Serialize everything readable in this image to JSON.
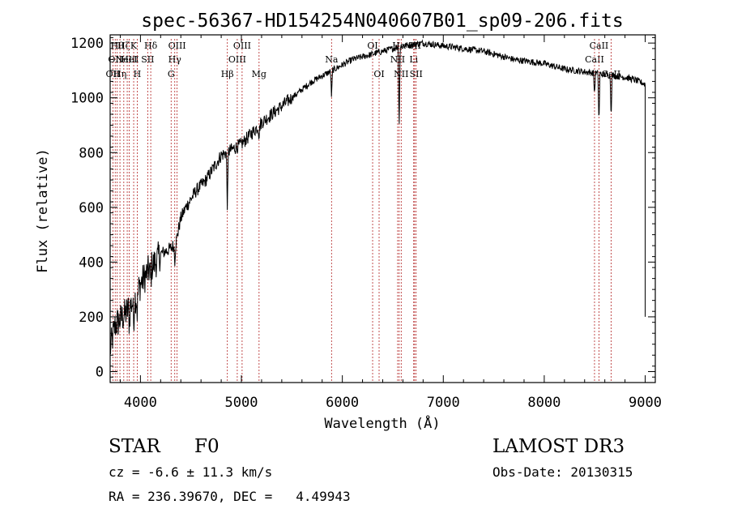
{
  "colors": {
    "spectrum": "#000000",
    "line_marker": "#b22222",
    "axes": "#000000"
  },
  "chart_data": {
    "type": "line",
    "title": "spec-56367-HD154254N040607B01_sp09-206.fits",
    "xlabel": "Wavelength (Å)",
    "ylabel": "Flux (relative)",
    "xlim": [
      3700,
      9100
    ],
    "ylim": [
      -40,
      1230
    ],
    "xticks": [
      4000,
      5000,
      6000,
      7000,
      8000,
      9000
    ],
    "yticks": [
      0,
      200,
      400,
      600,
      800,
      1000,
      1200
    ],
    "grid": false,
    "series": [
      {
        "x": [
          3700,
          3750,
          3800,
          3850,
          3900,
          3950,
          4000,
          4050,
          4100,
          4150,
          4200,
          4250,
          4300,
          4350,
          4400,
          4450,
          4500,
          4550,
          4600,
          4650,
          4700,
          4750,
          4800,
          4850,
          4900,
          4950,
          5000,
          5050,
          5100,
          5150,
          5200,
          5300,
          5400,
          5500,
          5600,
          5700,
          5800,
          5900,
          6000,
          6100,
          6200,
          6300,
          6400,
          6500,
          6600,
          6700,
          6800,
          6900,
          7000,
          7100,
          7200,
          7300,
          7400,
          7500,
          7600,
          7700,
          7800,
          7900,
          8000,
          8100,
          8200,
          8300,
          8400,
          8500,
          8600,
          8700,
          8800,
          8900,
          9000
        ],
        "y": [
          80,
          170,
          190,
          210,
          240,
          270,
          320,
          350,
          380,
          400,
          430,
          440,
          450,
          470,
          560,
          600,
          630,
          660,
          680,
          700,
          730,
          760,
          790,
          800,
          810,
          820,
          830,
          850,
          870,
          890,
          910,
          940,
          970,
          1000,
          1030,
          1060,
          1080,
          1100,
          1120,
          1140,
          1150,
          1160,
          1170,
          1180,
          1190,
          1195,
          1200,
          1195,
          1190,
          1185,
          1180,
          1175,
          1170,
          1160,
          1150,
          1140,
          1135,
          1130,
          1125,
          1115,
          1105,
          1100,
          1095,
          1090,
          1085,
          1080,
          1075,
          1065,
          1050
        ]
      }
    ],
    "absorption_features": [
      {
        "x": 3890,
        "depth": 60
      },
      {
        "x": 3933,
        "depth": 80
      },
      {
        "x": 3968,
        "depth": 70
      },
      {
        "x": 4102,
        "depth": 60
      },
      {
        "x": 4340,
        "depth": 60
      },
      {
        "x": 4861,
        "depth": 210
      },
      {
        "x": 5175,
        "depth": 40
      },
      {
        "x": 5893,
        "depth": 100
      },
      {
        "x": 6563,
        "depth": 300
      },
      {
        "x": 8498,
        "depth": 80
      },
      {
        "x": 8542,
        "depth": 190
      },
      {
        "x": 8662,
        "depth": 150
      }
    ],
    "line_markers": [
      {
        "x": 3727,
        "label": "OII",
        "row": 2
      },
      {
        "x": 3750,
        "label": "OII",
        "row": 1
      },
      {
        "x": 3770,
        "label": "Hθ",
        "row": 0
      },
      {
        "x": 3797,
        "label": "Hη",
        "row": 2
      },
      {
        "x": 3835,
        "label": "Hζ",
        "row": 0
      },
      {
        "x": 3869,
        "label": "NeIII",
        "row": 1
      },
      {
        "x": 3889,
        "label": "HeI",
        "row": 1
      },
      {
        "x": 3933,
        "label": "K",
        "row": 0
      },
      {
        "x": 3968,
        "label": "H",
        "row": 2
      },
      {
        "x": 4072,
        "label": "SII",
        "row": 1
      },
      {
        "x": 4102,
        "label": "Hδ",
        "row": 0
      },
      {
        "x": 4304,
        "label": "G",
        "row": 2
      },
      {
        "x": 4340,
        "label": "Hγ",
        "row": 1
      },
      {
        "x": 4363,
        "label": "OIII",
        "row": 0
      },
      {
        "x": 4861,
        "label": "Hβ",
        "row": 2
      },
      {
        "x": 4959,
        "label": "OIII",
        "row": 1
      },
      {
        "x": 5007,
        "label": "OIII",
        "row": 0
      },
      {
        "x": 5175,
        "label": "Mg",
        "row": 2
      },
      {
        "x": 5893,
        "label": "Na",
        "row": 1
      },
      {
        "x": 6300,
        "label": "OI",
        "row": 0
      },
      {
        "x": 6364,
        "label": "OI",
        "row": 2
      },
      {
        "x": 6548,
        "label": "NII",
        "row": 1
      },
      {
        "x": 6563,
        "label": "Hα",
        "row": 0
      },
      {
        "x": 6583,
        "label": "NII",
        "row": 2
      },
      {
        "x": 6707,
        "label": "Li",
        "row": 1
      },
      {
        "x": 6716,
        "label": "SII",
        "row": 0
      },
      {
        "x": 6731,
        "label": "SII",
        "row": 2
      },
      {
        "x": 8498,
        "label": "CaII",
        "row": 1
      },
      {
        "x": 8542,
        "label": "CaII",
        "row": 0
      },
      {
        "x": 8662,
        "label": "CaII",
        "row": 2
      }
    ]
  },
  "info": {
    "object_class": "STAR",
    "subclass": "F0",
    "survey": "LAMOST DR3",
    "redshift": "cz = -6.6 ± 11.3 km/s",
    "obs_date": "Obs-Date: 20130315",
    "coordinates": "RA = 236.39670, DEC =   4.49943"
  }
}
